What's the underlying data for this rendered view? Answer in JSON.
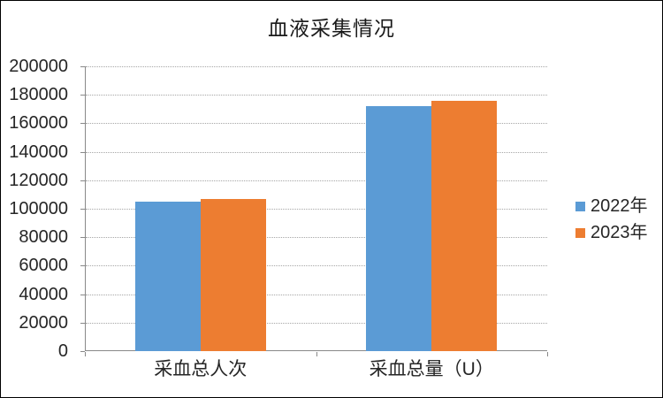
{
  "window": {
    "background": "#FFFFFF",
    "border_color": "#000000"
  },
  "chart_data": {
    "type": "bar",
    "title": "血液采集情况",
    "categories": [
      "采血总人次",
      "采血总量（U）"
    ],
    "series": [
      {
        "name": "2022年",
        "color": "#5B9BD5",
        "values": [
          105000,
          172000
        ]
      },
      {
        "name": "2023年",
        "color": "#ED7D31",
        "values": [
          107000,
          176000
        ]
      }
    ],
    "xlabel": "",
    "ylabel": "",
    "ylim": [
      0,
      200000
    ],
    "yticks": [
      0,
      20000,
      40000,
      60000,
      80000,
      100000,
      120000,
      140000,
      160000,
      180000,
      200000
    ],
    "grid": true,
    "gridline_color": "#A6A6A6",
    "axis_color": "#898989",
    "text_color": "#262626",
    "legend_position": "right"
  }
}
